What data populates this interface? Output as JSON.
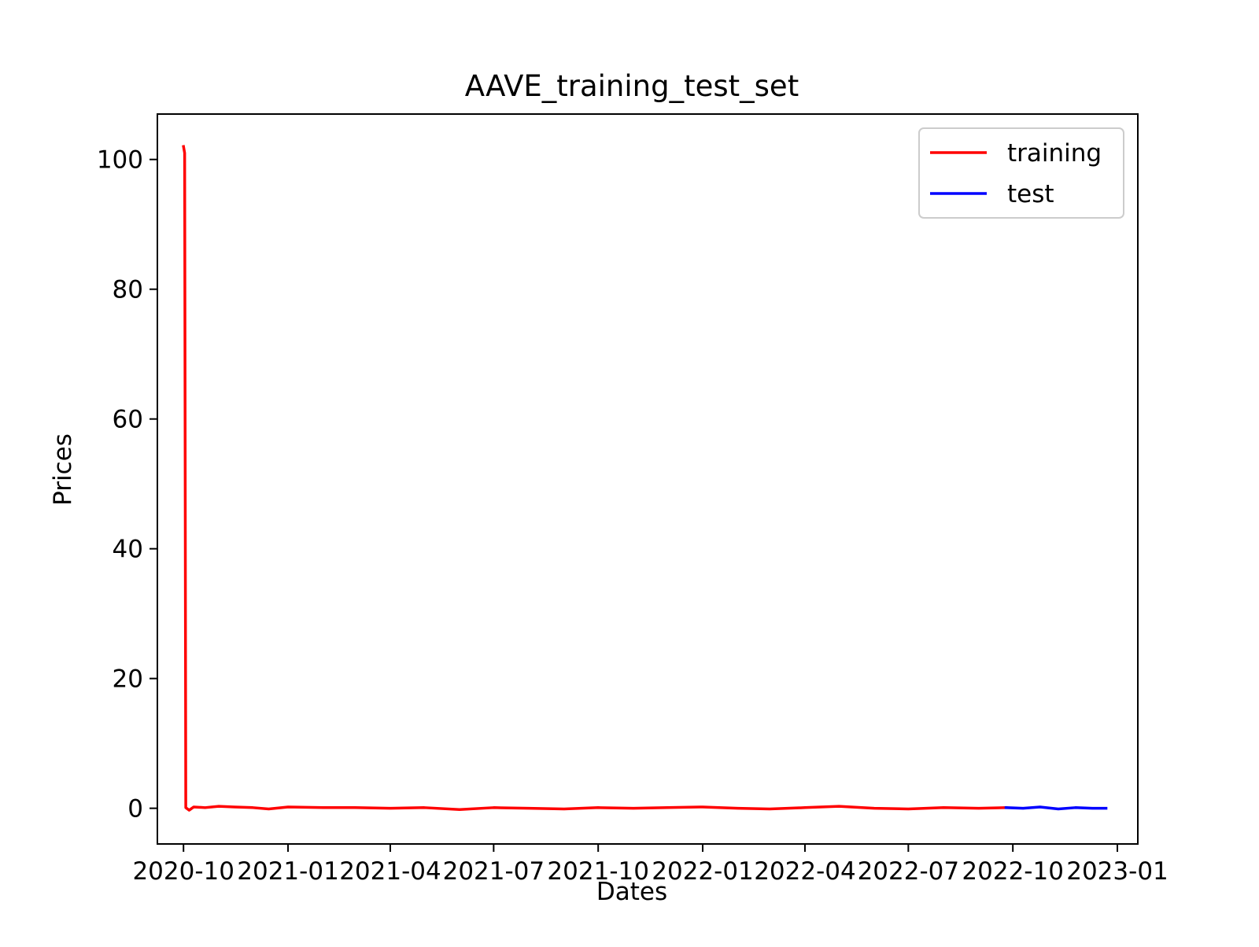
{
  "chart_data": {
    "type": "line",
    "title": "AAVE_training_test_set",
    "xlabel": "Dates",
    "ylabel": "Prices",
    "xlim": [
      "2020-09-08",
      "2023-01-19"
    ],
    "ylim": [
      -5.5,
      107
    ],
    "x_ticks": [
      "2020-10",
      "2021-01",
      "2021-04",
      "2021-07",
      "2021-10",
      "2022-01",
      "2022-04",
      "2022-07",
      "2022-10",
      "2023-01"
    ],
    "y_ticks": [
      0,
      20,
      40,
      60,
      80,
      100
    ],
    "grid": false,
    "legend": "top-right",
    "series": [
      {
        "name": "training",
        "color": "#ff0000",
        "x": [
          "2020-10-01",
          "2020-10-02",
          "2020-10-03",
          "2020-10-06",
          "2020-10-10",
          "2020-10-20",
          "2020-11-01",
          "2020-11-15",
          "2020-12-01",
          "2020-12-15",
          "2021-01-01",
          "2021-02-01",
          "2021-03-01",
          "2021-04-01",
          "2021-05-01",
          "2021-06-01",
          "2021-07-01",
          "2021-08-01",
          "2021-09-01",
          "2021-10-01",
          "2021-11-01",
          "2021-12-01",
          "2022-01-01",
          "2022-02-01",
          "2022-03-01",
          "2022-04-01",
          "2022-05-01",
          "2022-06-01",
          "2022-07-01",
          "2022-08-01",
          "2022-09-01",
          "2022-09-25"
        ],
        "y": [
          102,
          101,
          0.1,
          -0.3,
          0.2,
          0.1,
          0.3,
          0.2,
          0.1,
          -0.1,
          0.2,
          0.1,
          0.1,
          0.0,
          0.1,
          -0.2,
          0.1,
          0.0,
          -0.1,
          0.1,
          0.0,
          0.1,
          0.2,
          0.0,
          -0.1,
          0.1,
          0.3,
          0.0,
          -0.1,
          0.1,
          0.0,
          0.1
        ]
      },
      {
        "name": "test",
        "color": "#0000ff",
        "x": [
          "2022-09-25",
          "2022-10-10",
          "2022-10-25",
          "2022-11-10",
          "2022-11-25",
          "2022-12-10",
          "2022-12-22"
        ],
        "y": [
          0.1,
          0.0,
          0.2,
          -0.1,
          0.1,
          0.0,
          0.0
        ]
      }
    ]
  }
}
